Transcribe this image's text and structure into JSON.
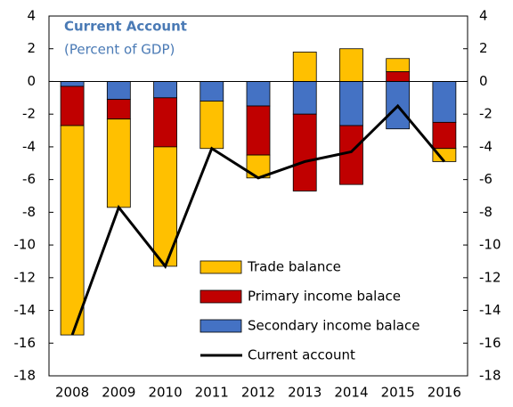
{
  "chart_data": {
    "type": "stacked_bar_line",
    "title": "Current Account",
    "subtitle": "(Percent of GDP)",
    "categories": [
      "2008",
      "2009",
      "2010",
      "2011",
      "2012",
      "2013",
      "2014",
      "2015",
      "2016"
    ],
    "series": [
      {
        "name": "Trade balance",
        "color": "#FFC000",
        "values": [
          -12.8,
          -5.4,
          -7.3,
          -2.9,
          -1.4,
          1.8,
          2.0,
          0.8,
          -0.8
        ]
      },
      {
        "name": "Primary income balace",
        "color": "#C00000",
        "values": [
          -2.4,
          -1.2,
          -3.0,
          0,
          -3.0,
          -4.7,
          -3.6,
          0.6,
          -1.6
        ]
      },
      {
        "name": "Secondary income balace",
        "color": "#4472C4",
        "values": [
          -0.3,
          -1.1,
          -1.0,
          -1.2,
          -1.5,
          -2.0,
          -2.7,
          -2.9,
          -2.5
        ]
      },
      {
        "name": "Current account",
        "color": "#000000",
        "type": "line",
        "values": [
          -15.5,
          -7.7,
          -11.3,
          -4.1,
          -5.9,
          -4.9,
          -4.3,
          -1.5,
          -4.9
        ]
      }
    ],
    "ylim": [
      -18,
      4
    ],
    "yticks": [
      -18,
      -16,
      -14,
      -12,
      -10,
      -8,
      -6,
      -4,
      -2,
      0,
      2,
      4
    ],
    "y2lim": [
      -18,
      4
    ],
    "y2ticks": [
      -18,
      -16,
      -14,
      -12,
      -10,
      -8,
      -6,
      -4,
      -2,
      0,
      2,
      4
    ]
  }
}
